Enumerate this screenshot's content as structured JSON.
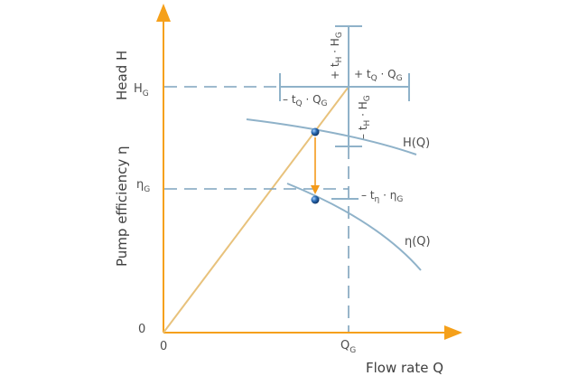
{
  "diagram": {
    "axis_x_title": "Flow rate Q",
    "axis_y_title_head": "Head H",
    "axis_y_title_eff": "Pump efficiency η",
    "origin_x": "0",
    "origin_y": "0",
    "tick_x": {
      "base": "Q",
      "sub": "G"
    },
    "tick_h": {
      "base": "H",
      "sub": "G"
    },
    "tick_eta": {
      "base": "η",
      "sub": "G"
    },
    "curve_h_label": "H(Q)",
    "curve_eta_label": "η(Q)",
    "tol_plus_h": {
      "pre": "+ t",
      "sub1": "H",
      "mid": " · H",
      "sub2": "G"
    },
    "tol_minus_h": {
      "pre": "– t",
      "sub1": "H",
      "mid": " · H",
      "sub2": "G"
    },
    "tol_plus_q": {
      "pre": "+ t",
      "sub1": "Q",
      "mid": " · Q",
      "sub2": "G"
    },
    "tol_minus_q": {
      "pre": "– t",
      "sub1": "Q",
      "mid": " · Q",
      "sub2": "G"
    },
    "tol_minus_eta": {
      "pre": "– t",
      "sub1": "η",
      "mid": " · η",
      "sub2": "G"
    },
    "colors": {
      "axis": "#f5a01a",
      "curve": "#8fb2c9",
      "dashed": "#7fa3bd",
      "operating_line": "#e8c27c",
      "arrow": "#f39a1b",
      "point": "#1f5f9e"
    }
  }
}
